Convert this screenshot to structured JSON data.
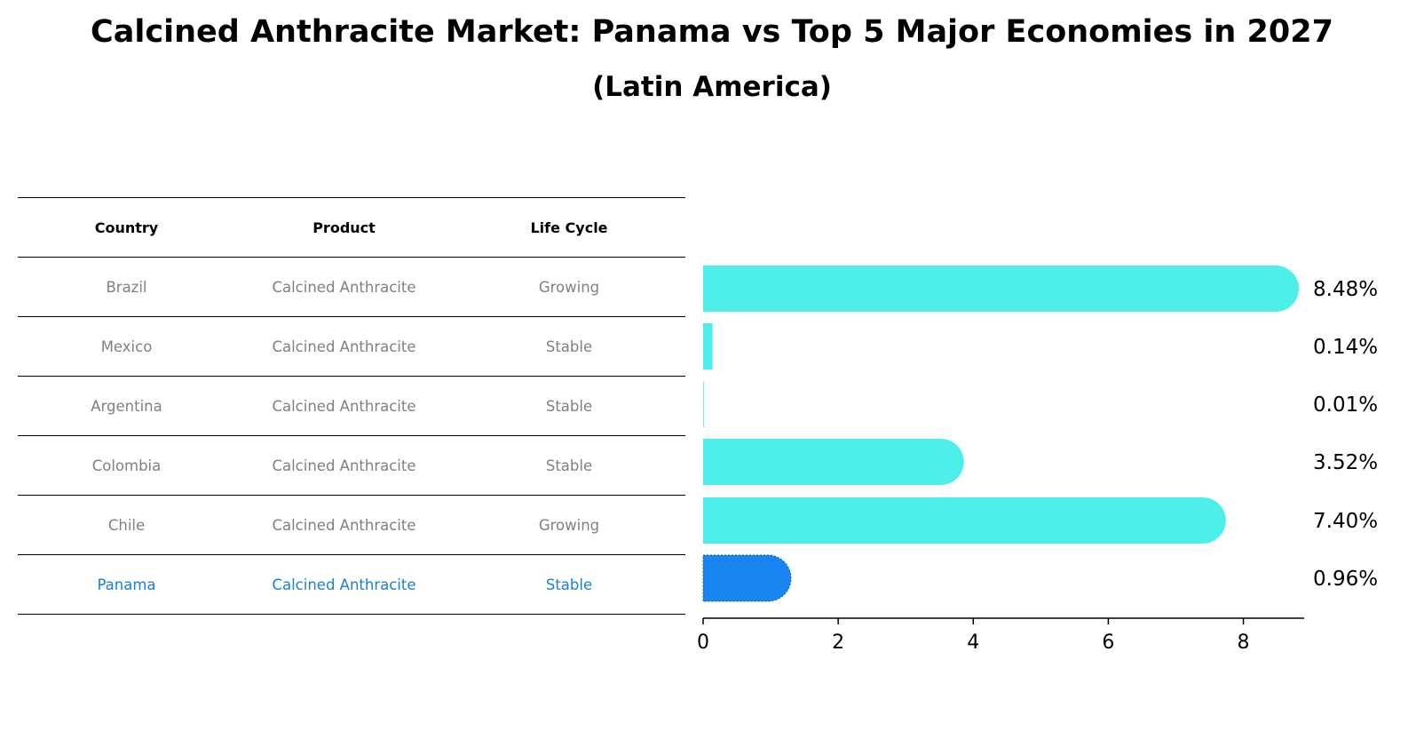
{
  "title": "Calcined Anthracite Market: Panama vs Top 5 Major Economies in 2027",
  "subtitle": "(Latin America)",
  "table": {
    "headers": [
      "Country",
      "Product",
      "Life Cycle"
    ],
    "rows": [
      {
        "country": "Brazil",
        "product": "Calcined Anthracite",
        "life_cycle": "Growing"
      },
      {
        "country": "Mexico",
        "product": "Calcined Anthracite",
        "life_cycle": "Stable"
      },
      {
        "country": "Argentina",
        "product": "Calcined Anthracite",
        "life_cycle": "Stable"
      },
      {
        "country": "Colombia",
        "product": "Calcined Anthracite",
        "life_cycle": "Stable"
      },
      {
        "country": "Chile",
        "product": "Calcined Anthracite",
        "life_cycle": "Growing"
      },
      {
        "country": "Panama",
        "product": "Calcined Anthracite",
        "life_cycle": "Stable"
      }
    ]
  },
  "chart_data": {
    "type": "bar",
    "orientation": "horizontal",
    "categories": [
      "Brazil",
      "Mexico",
      "Argentina",
      "Colombia",
      "Chile",
      "Panama"
    ],
    "values": [
      8.48,
      0.14,
      0.01,
      3.52,
      7.4,
      0.96
    ],
    "value_labels": [
      "8.48%",
      "0.14%",
      "0.01%",
      "3.52%",
      "7.40%",
      "0.96%"
    ],
    "xlim": [
      0,
      8.9
    ],
    "xticks": [
      0,
      2,
      4,
      6,
      8
    ],
    "highlight_index": 5,
    "colors": {
      "default": "#4eeeea",
      "highlight": "#1a85f0"
    },
    "grid": false
  },
  "colors": {
    "muted_text": "#808080",
    "highlight_text": "#1a7fd6"
  }
}
